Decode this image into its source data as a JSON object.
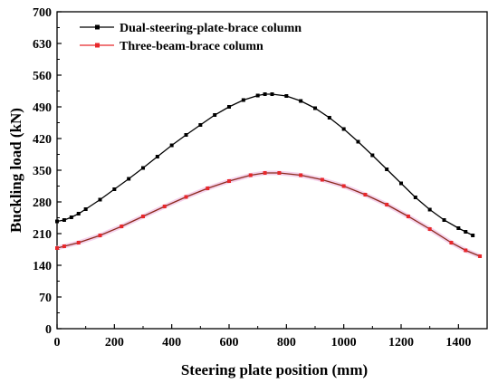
{
  "chart_data": {
    "type": "line",
    "xlabel": "Steering plate position (mm)",
    "ylabel": "Buckling load (kN)",
    "xlim": [
      0,
      1500
    ],
    "ylim": [
      0,
      700
    ],
    "xticks": [
      0,
      200,
      400,
      600,
      800,
      1000,
      1200,
      1400
    ],
    "yticks": [
      0,
      70,
      140,
      210,
      280,
      350,
      420,
      490,
      560,
      630,
      700
    ],
    "grid": false,
    "legend": "top-left",
    "series": [
      {
        "name": "Dual-steering-plate-brace column",
        "color": "#000000",
        "marker": "square",
        "x": [
          0,
          25,
          50,
          75,
          100,
          150,
          200,
          250,
          300,
          350,
          400,
          450,
          500,
          550,
          600,
          650,
          700,
          725,
          750,
          800,
          850,
          900,
          950,
          1000,
          1050,
          1100,
          1150,
          1200,
          1250,
          1300,
          1350,
          1400,
          1425,
          1450
        ],
        "y": [
          237,
          240,
          246,
          254,
          264,
          285,
          308,
          331,
          355,
          380,
          405,
          428,
          450,
          472,
          490,
          505,
          515,
          518,
          518,
          514,
          503,
          487,
          466,
          441,
          413,
          383,
          352,
          321,
          290,
          263,
          240,
          222,
          214,
          206
        ]
      },
      {
        "name": "Three-beam-brace column",
        "color": "#e8282b",
        "marker": "square",
        "x": [
          0,
          25,
          75,
          150,
          225,
          300,
          375,
          450,
          525,
          600,
          675,
          725,
          775,
          850,
          925,
          1000,
          1075,
          1150,
          1225,
          1300,
          1375,
          1425,
          1475
        ],
        "y": [
          178,
          182,
          190,
          206,
          226,
          248,
          270,
          291,
          310,
          326,
          339,
          344,
          344,
          339,
          329,
          315,
          296,
          274,
          248,
          220,
          190,
          173,
          160
        ]
      }
    ]
  }
}
